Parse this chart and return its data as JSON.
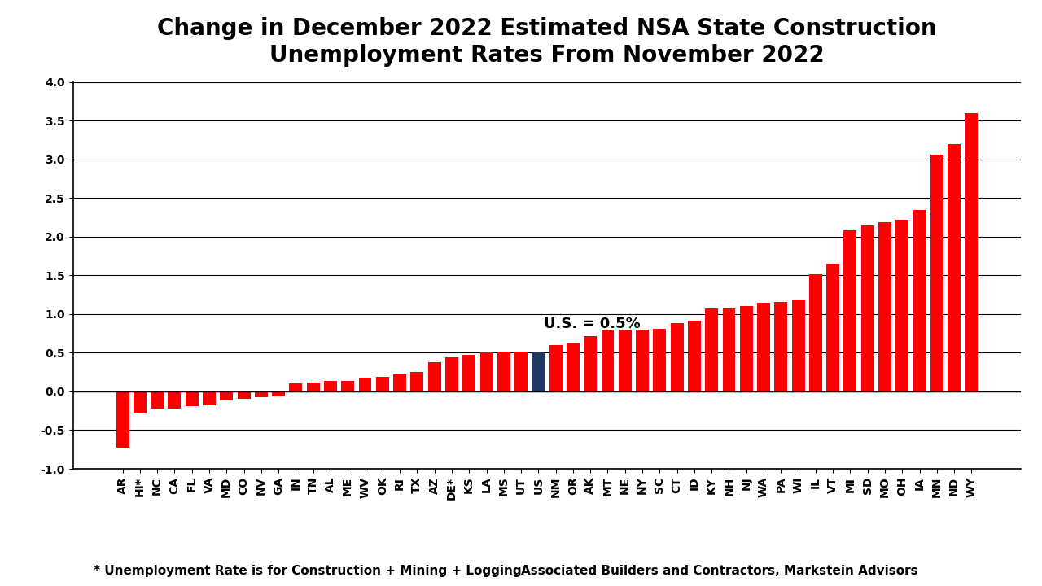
{
  "title": "Change in December 2022 Estimated NSA State Construction\nUnemployment Rates From November 2022",
  "states": [
    "AR",
    "HI*",
    "NC",
    "CA",
    "FL",
    "VA",
    "MD",
    "CO",
    "NV",
    "GA",
    "IN",
    "TN",
    "AL",
    "ME",
    "WV",
    "OK",
    "RI",
    "TX",
    "AZ",
    "DE*",
    "KS",
    "LA",
    "MS",
    "UT",
    "US",
    "NM",
    "OR",
    "AK",
    "MT",
    "NE",
    "NY",
    "SC",
    "CT",
    "ID",
    "KY",
    "NH",
    "NJ",
    "WA",
    "PA",
    "WI",
    "IL",
    "VT",
    "MI",
    "SD",
    "MO",
    "OH",
    "IA",
    "MN",
    "ND",
    "WY"
  ],
  "values": [
    -0.73,
    -0.28,
    -0.22,
    -0.22,
    -0.19,
    -0.18,
    -0.12,
    -0.1,
    -0.07,
    -0.06,
    0.1,
    0.12,
    0.14,
    0.14,
    0.18,
    0.19,
    0.22,
    0.25,
    0.38,
    0.44,
    0.47,
    0.5,
    0.51,
    0.52,
    0.5,
    0.6,
    0.62,
    0.72,
    0.8,
    0.8,
    0.8,
    0.81,
    0.88,
    0.92,
    1.07,
    1.07,
    1.1,
    1.15,
    1.16,
    1.19,
    1.51,
    1.65,
    2.08,
    2.15,
    2.19,
    2.22,
    2.35,
    3.06,
    3.2,
    3.6
  ],
  "us_bar_index": 24,
  "us_label": "U.S. = 0.5%",
  "bar_color_red": "#FF0000",
  "bar_color_us": "#1F3864",
  "footnote_left": "* Unemployment Rate is for Construction + Mining + Logging",
  "footnote_right": "Associated Builders and Contractors, Markstein Advisors",
  "ylim": [
    -1.0,
    4.0
  ],
  "yticks": [
    -1.0,
    -0.5,
    0.0,
    0.5,
    1.0,
    1.5,
    2.0,
    2.5,
    3.0,
    3.5,
    4.0
  ],
  "background_color": "#FFFFFF",
  "grid_color": "#000000",
  "title_fontsize": 20,
  "tick_fontsize": 10,
  "footnote_fontsize": 11
}
